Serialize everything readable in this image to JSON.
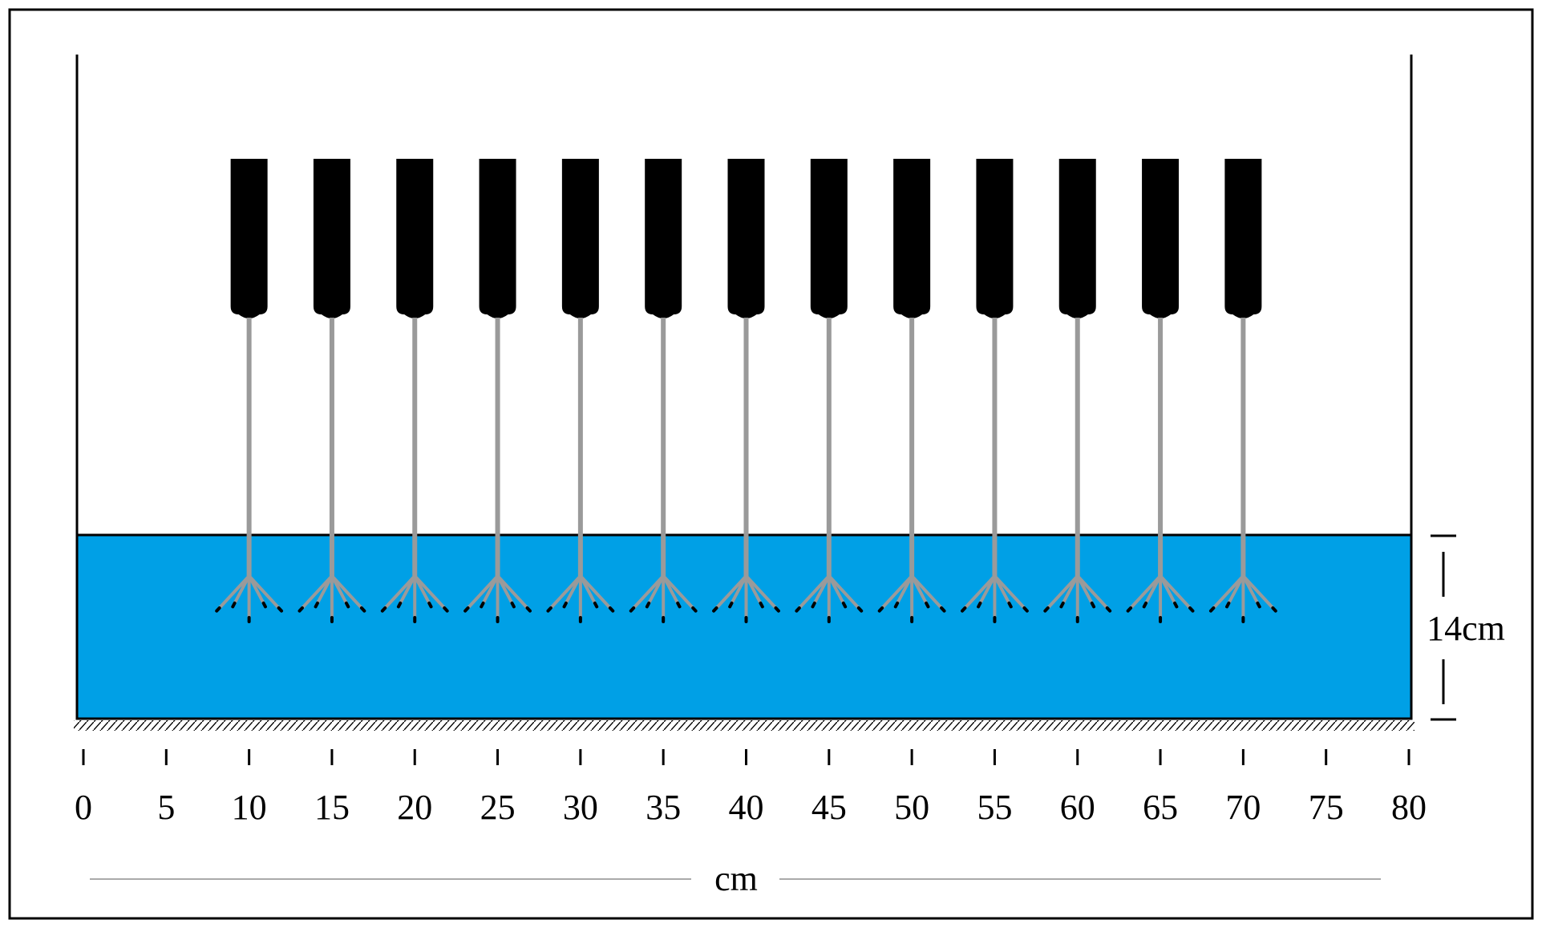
{
  "depth_label": "14cm",
  "unit_label": "cm",
  "ruler": {
    "min": 0,
    "max": 80,
    "tick_values": [
      0,
      5,
      10,
      15,
      20,
      25,
      30,
      35,
      40,
      45,
      50,
      55,
      60,
      65,
      70,
      75,
      80
    ],
    "tick_labels": [
      "0",
      "5",
      "10",
      "15",
      "20",
      "25",
      "30",
      "35",
      "40",
      "45",
      "50",
      "55",
      "60",
      "65",
      "70",
      "75",
      "80"
    ]
  },
  "probes": {
    "positions_cm": [
      10,
      15,
      20,
      25,
      30,
      35,
      40,
      45,
      50,
      55,
      60,
      65,
      70
    ]
  },
  "colors": {
    "water": "#00A0E6",
    "probe_body": "#000000",
    "probe_rod": "#9a9a9a",
    "frame": "#000000"
  }
}
